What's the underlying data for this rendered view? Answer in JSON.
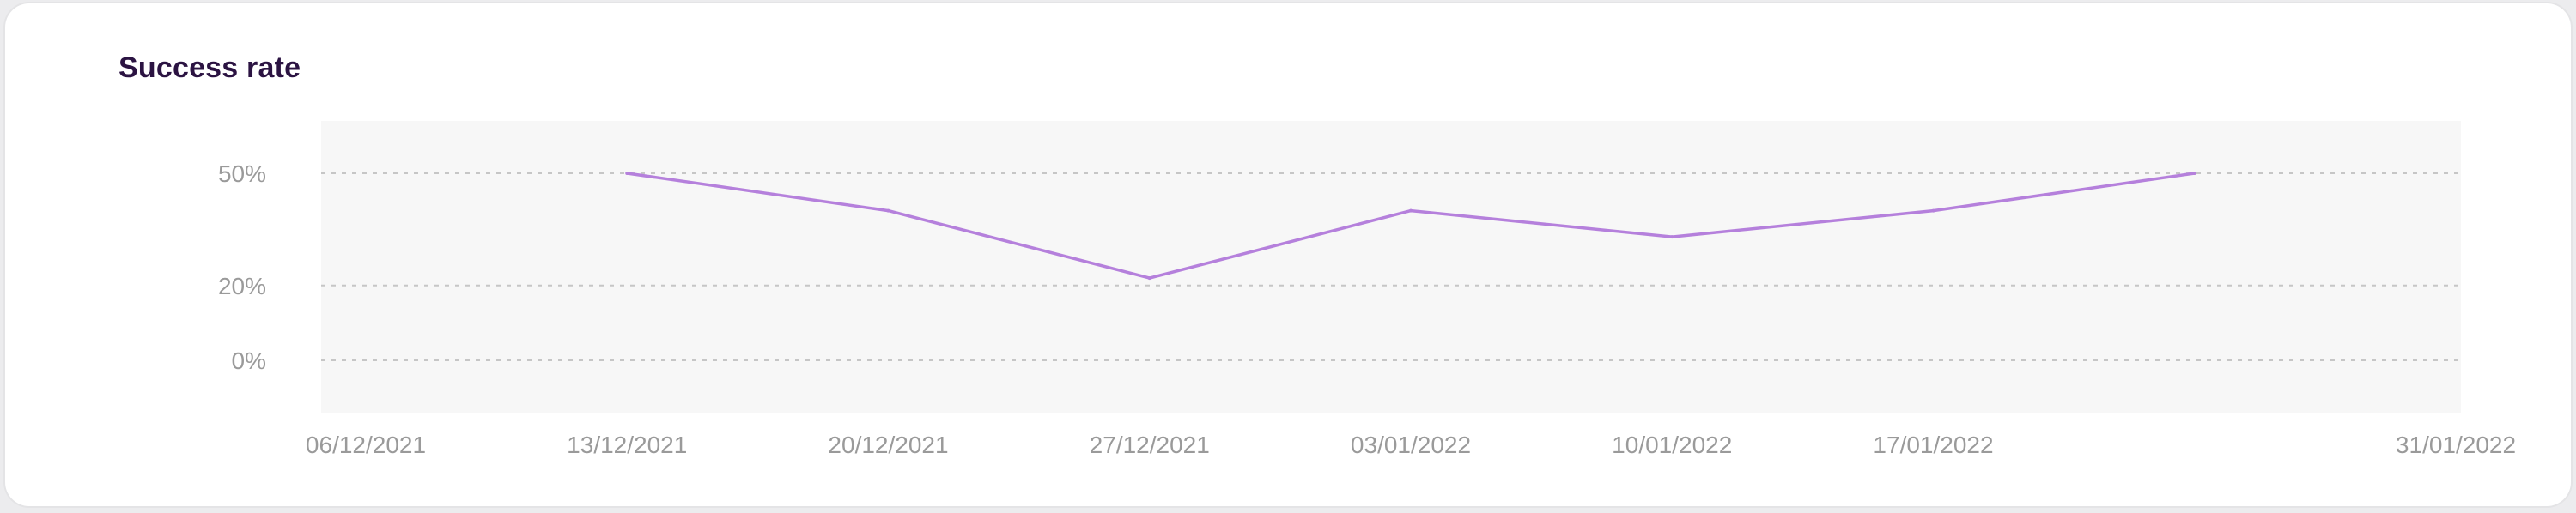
{
  "card": {
    "title": "Success rate"
  },
  "chart_data": {
    "type": "line",
    "title": "Success rate",
    "xlabel": "",
    "ylabel": "",
    "x_ticks": [
      "06/12/2021",
      "13/12/2021",
      "20/12/2021",
      "27/12/2021",
      "03/01/2022",
      "10/01/2022",
      "17/01/2022",
      "31/01/2022"
    ],
    "y_ticks": [
      {
        "value": 0,
        "label": "0%"
      },
      {
        "value": 20,
        "label": "20%"
      },
      {
        "value": 50,
        "label": "50%"
      }
    ],
    "ylim": [
      -14,
      64
    ],
    "xlim": [
      "2021-12-06",
      "2022-01-31"
    ],
    "grid": true,
    "series": [
      {
        "color": "#b580dc",
        "points": [
          {
            "x": "2021-12-13",
            "y": 50
          },
          {
            "x": "2021-12-20",
            "y": 40
          },
          {
            "x": "2021-12-27",
            "y": 22
          },
          {
            "x": "2022-01-03",
            "y": 40
          },
          {
            "x": "2022-01-10",
            "y": 33
          },
          {
            "x": "2022-01-17",
            "y": 40
          },
          {
            "x": "2022-01-24",
            "y": 50
          }
        ]
      }
    ],
    "colors": {
      "plot_background": "#f7f7f7",
      "grid": "#c6c6c6",
      "tick_text": "#9a9a9a",
      "line": "#b580dc"
    }
  }
}
